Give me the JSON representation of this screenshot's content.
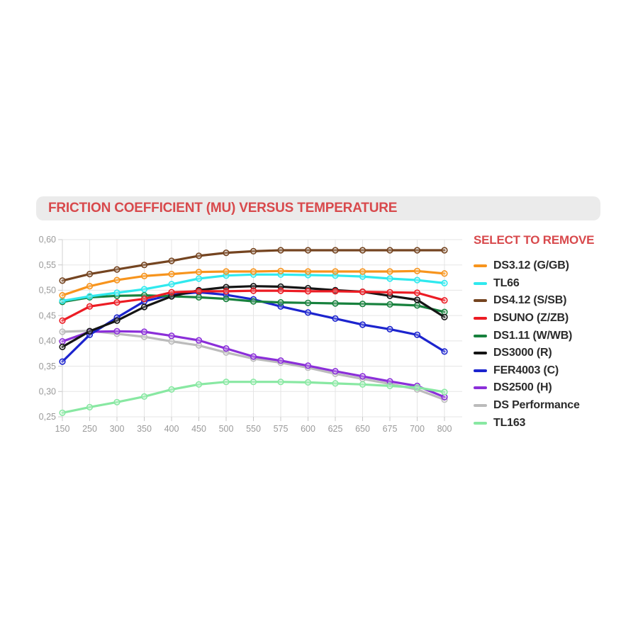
{
  "title_bar": {
    "title": "FRICTION COEFFICIENT (MU) VERSUS TEMPERATURE"
  },
  "legend": {
    "header": "SELECT TO REMOVE"
  },
  "colors": {
    "accent_red": "#D8494C",
    "title_bar_bg": "#EBEBEB",
    "gridline": "#E5E5E5",
    "axis_line": "#D2D2D2",
    "tick": "#C8C8C8",
    "axis_text": "#9A9A9A",
    "legend_text": "#2B2B2B"
  },
  "chart_data": {
    "type": "line",
    "title": "FRICTION COEFFICIENT (MU) VERSUS TEMPERATURE",
    "xlabel": "",
    "ylabel": "",
    "grid": true,
    "legend_position": "right",
    "marker": "open-circle",
    "ylim": [
      0.25,
      0.6
    ],
    "y_step": 0.05,
    "x_tick_labels": [
      "150",
      "250",
      "300",
      "350",
      "400",
      "450",
      "500",
      "550",
      "575",
      "600",
      "625",
      "650",
      "675",
      "700",
      "800"
    ],
    "y_tick_labels": [
      "0,60",
      "0,55",
      "0,50",
      "0,45",
      "0,40",
      "0,35",
      "0,30",
      "0,25"
    ],
    "categories": [
      150,
      250,
      300,
      350,
      400,
      450,
      500,
      550,
      575,
      600,
      625,
      650,
      675,
      700,
      800
    ],
    "series": [
      {
        "key": "ds312",
        "name": "DS3.12 (G/GB)",
        "color": "#F7941D",
        "values": [
          0.49,
          0.508,
          0.52,
          0.528,
          0.532,
          0.536,
          0.537,
          0.537,
          0.538,
          0.537,
          0.537,
          0.537,
          0.537,
          0.538,
          0.533
        ]
      },
      {
        "key": "tl66",
        "name": "TL66",
        "color": "#2FE9EE",
        "values": [
          0.479,
          0.488,
          0.495,
          0.502,
          0.512,
          0.523,
          0.529,
          0.531,
          0.531,
          0.53,
          0.529,
          0.527,
          0.523,
          0.52,
          0.514
        ]
      },
      {
        "key": "ds412",
        "name": "DS4.12 (S/SB)",
        "color": "#744420",
        "values": [
          0.519,
          0.532,
          0.541,
          0.55,
          0.558,
          0.568,
          0.574,
          0.577,
          0.579,
          0.579,
          0.579,
          0.579,
          0.579,
          0.579,
          0.579
        ]
      },
      {
        "key": "dsuno",
        "name": "DSUNO (Z/ZB)",
        "color": "#EC1C24",
        "values": [
          0.44,
          0.468,
          0.476,
          0.483,
          0.496,
          0.498,
          0.498,
          0.499,
          0.499,
          0.498,
          0.498,
          0.497,
          0.496,
          0.495,
          0.48
        ]
      },
      {
        "key": "ds111",
        "name": "DS1.11 (W/WB)",
        "color": "#17813D",
        "values": [
          0.477,
          0.486,
          0.489,
          0.49,
          0.488,
          0.486,
          0.483,
          0.478,
          0.476,
          0.475,
          0.474,
          0.473,
          0.472,
          0.47,
          0.457
        ]
      },
      {
        "key": "ds3000",
        "name": "DS3000 (R)",
        "color": "#141414",
        "values": [
          0.388,
          0.419,
          0.44,
          0.467,
          0.488,
          0.5,
          0.506,
          0.508,
          0.507,
          0.504,
          0.5,
          0.497,
          0.489,
          0.481,
          0.447
        ]
      },
      {
        "key": "fer4003",
        "name": "FER4003 (C)",
        "color": "#1C24CE",
        "values": [
          0.359,
          0.412,
          0.446,
          0.478,
          0.491,
          0.496,
          0.491,
          0.482,
          0.468,
          0.456,
          0.444,
          0.432,
          0.423,
          0.412,
          0.379
        ]
      },
      {
        "key": "ds2500",
        "name": "DS2500 (H)",
        "color": "#8B2FD9",
        "values": [
          0.399,
          0.418,
          0.419,
          0.418,
          0.41,
          0.401,
          0.385,
          0.369,
          0.361,
          0.351,
          0.34,
          0.33,
          0.32,
          0.311,
          0.289
        ]
      },
      {
        "key": "ds-performance",
        "name": "DS Performance",
        "color": "#BBBBBB",
        "values": [
          0.418,
          0.42,
          0.414,
          0.408,
          0.399,
          0.391,
          0.377,
          0.365,
          0.357,
          0.347,
          0.335,
          0.325,
          0.315,
          0.304,
          0.284
        ]
      },
      {
        "key": "tl163",
        "name": "TL163",
        "color": "#88E8A2",
        "values": [
          0.258,
          0.269,
          0.279,
          0.29,
          0.304,
          0.314,
          0.319,
          0.319,
          0.319,
          0.318,
          0.316,
          0.314,
          0.311,
          0.308,
          0.299
        ]
      }
    ],
    "z_order": [
      "ds-performance",
      "ds2500",
      "tl163",
      "fer4003",
      "ds111",
      "ds3000",
      "dsuno",
      "ds412",
      "tl66",
      "ds312"
    ]
  }
}
